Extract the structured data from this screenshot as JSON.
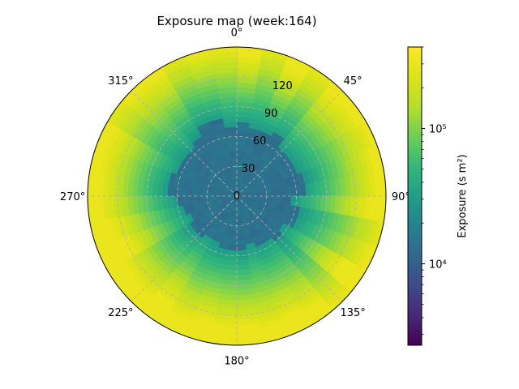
{
  "chart_data": {
    "type": "heatmap",
    "projection": "polar",
    "title": "Exposure map (week:164)",
    "theta_direction": "clockwise",
    "theta_zero": "top",
    "theta_ticks": [
      "0°",
      "45°",
      "90°",
      "135°",
      "180°",
      "225°",
      "270°",
      "315°"
    ],
    "r_ticks": [
      "0",
      "30",
      "60",
      "90",
      "120"
    ],
    "r_range": [
      0,
      150
    ],
    "grid": true,
    "colormap": "viridis",
    "color_scale": "log",
    "color_range": [
      2500,
      400000
    ],
    "colorbar": {
      "label": "Exposure (s m²)",
      "tick_labels": [
        "10⁴",
        "10⁵"
      ],
      "tick_values": [
        10000,
        100000
      ]
    },
    "approximate_exposure_profile": {
      "r_inner_low_region": 55,
      "inner_value": 12000,
      "outer_value": 300000,
      "low_value_streaks": [
        {
          "theta_deg": 280,
          "r": [
            55,
            65
          ],
          "value": 3500
        },
        {
          "theta_deg": 110,
          "r": [
            50,
            62
          ],
          "value": 3500
        }
      ]
    }
  }
}
